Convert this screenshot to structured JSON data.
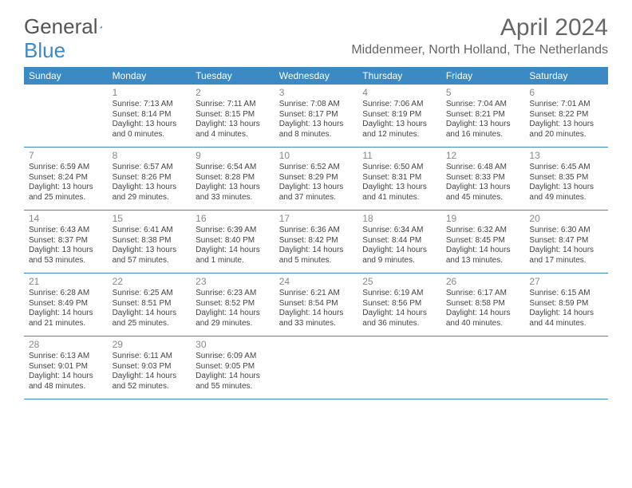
{
  "logo": {
    "word1": "General",
    "word2": "Blue"
  },
  "title": "April 2024",
  "subtitle": "Middenmeer, North Holland, The Netherlands",
  "colors": {
    "header_bg": "#3b8ac4",
    "header_text": "#ffffff",
    "divider": "#3b8ac4",
    "body_text": "#444444",
    "daynum_text": "#888888",
    "title_text": "#666666",
    "background": "#ffffff"
  },
  "typography": {
    "title_fontsize": 30,
    "subtitle_fontsize": 16,
    "day_header_fontsize": 12,
    "daynum_fontsize": 12,
    "body_fontsize": 10
  },
  "day_headers": [
    "Sunday",
    "Monday",
    "Tuesday",
    "Wednesday",
    "Thursday",
    "Friday",
    "Saturday"
  ],
  "weeks": [
    [
      {
        "num": "",
        "sunrise": "",
        "sunset": "",
        "daylight1": "",
        "daylight2": ""
      },
      {
        "num": "1",
        "sunrise": "Sunrise: 7:13 AM",
        "sunset": "Sunset: 8:14 PM",
        "daylight1": "Daylight: 13 hours",
        "daylight2": "and 0 minutes."
      },
      {
        "num": "2",
        "sunrise": "Sunrise: 7:11 AM",
        "sunset": "Sunset: 8:15 PM",
        "daylight1": "Daylight: 13 hours",
        "daylight2": "and 4 minutes."
      },
      {
        "num": "3",
        "sunrise": "Sunrise: 7:08 AM",
        "sunset": "Sunset: 8:17 PM",
        "daylight1": "Daylight: 13 hours",
        "daylight2": "and 8 minutes."
      },
      {
        "num": "4",
        "sunrise": "Sunrise: 7:06 AM",
        "sunset": "Sunset: 8:19 PM",
        "daylight1": "Daylight: 13 hours",
        "daylight2": "and 12 minutes."
      },
      {
        "num": "5",
        "sunrise": "Sunrise: 7:04 AM",
        "sunset": "Sunset: 8:21 PM",
        "daylight1": "Daylight: 13 hours",
        "daylight2": "and 16 minutes."
      },
      {
        "num": "6",
        "sunrise": "Sunrise: 7:01 AM",
        "sunset": "Sunset: 8:22 PM",
        "daylight1": "Daylight: 13 hours",
        "daylight2": "and 20 minutes."
      }
    ],
    [
      {
        "num": "7",
        "sunrise": "Sunrise: 6:59 AM",
        "sunset": "Sunset: 8:24 PM",
        "daylight1": "Daylight: 13 hours",
        "daylight2": "and 25 minutes."
      },
      {
        "num": "8",
        "sunrise": "Sunrise: 6:57 AM",
        "sunset": "Sunset: 8:26 PM",
        "daylight1": "Daylight: 13 hours",
        "daylight2": "and 29 minutes."
      },
      {
        "num": "9",
        "sunrise": "Sunrise: 6:54 AM",
        "sunset": "Sunset: 8:28 PM",
        "daylight1": "Daylight: 13 hours",
        "daylight2": "and 33 minutes."
      },
      {
        "num": "10",
        "sunrise": "Sunrise: 6:52 AM",
        "sunset": "Sunset: 8:29 PM",
        "daylight1": "Daylight: 13 hours",
        "daylight2": "and 37 minutes."
      },
      {
        "num": "11",
        "sunrise": "Sunrise: 6:50 AM",
        "sunset": "Sunset: 8:31 PM",
        "daylight1": "Daylight: 13 hours",
        "daylight2": "and 41 minutes."
      },
      {
        "num": "12",
        "sunrise": "Sunrise: 6:48 AM",
        "sunset": "Sunset: 8:33 PM",
        "daylight1": "Daylight: 13 hours",
        "daylight2": "and 45 minutes."
      },
      {
        "num": "13",
        "sunrise": "Sunrise: 6:45 AM",
        "sunset": "Sunset: 8:35 PM",
        "daylight1": "Daylight: 13 hours",
        "daylight2": "and 49 minutes."
      }
    ],
    [
      {
        "num": "14",
        "sunrise": "Sunrise: 6:43 AM",
        "sunset": "Sunset: 8:37 PM",
        "daylight1": "Daylight: 13 hours",
        "daylight2": "and 53 minutes."
      },
      {
        "num": "15",
        "sunrise": "Sunrise: 6:41 AM",
        "sunset": "Sunset: 8:38 PM",
        "daylight1": "Daylight: 13 hours",
        "daylight2": "and 57 minutes."
      },
      {
        "num": "16",
        "sunrise": "Sunrise: 6:39 AM",
        "sunset": "Sunset: 8:40 PM",
        "daylight1": "Daylight: 14 hours",
        "daylight2": "and 1 minute."
      },
      {
        "num": "17",
        "sunrise": "Sunrise: 6:36 AM",
        "sunset": "Sunset: 8:42 PM",
        "daylight1": "Daylight: 14 hours",
        "daylight2": "and 5 minutes."
      },
      {
        "num": "18",
        "sunrise": "Sunrise: 6:34 AM",
        "sunset": "Sunset: 8:44 PM",
        "daylight1": "Daylight: 14 hours",
        "daylight2": "and 9 minutes."
      },
      {
        "num": "19",
        "sunrise": "Sunrise: 6:32 AM",
        "sunset": "Sunset: 8:45 PM",
        "daylight1": "Daylight: 14 hours",
        "daylight2": "and 13 minutes."
      },
      {
        "num": "20",
        "sunrise": "Sunrise: 6:30 AM",
        "sunset": "Sunset: 8:47 PM",
        "daylight1": "Daylight: 14 hours",
        "daylight2": "and 17 minutes."
      }
    ],
    [
      {
        "num": "21",
        "sunrise": "Sunrise: 6:28 AM",
        "sunset": "Sunset: 8:49 PM",
        "daylight1": "Daylight: 14 hours",
        "daylight2": "and 21 minutes."
      },
      {
        "num": "22",
        "sunrise": "Sunrise: 6:25 AM",
        "sunset": "Sunset: 8:51 PM",
        "daylight1": "Daylight: 14 hours",
        "daylight2": "and 25 minutes."
      },
      {
        "num": "23",
        "sunrise": "Sunrise: 6:23 AM",
        "sunset": "Sunset: 8:52 PM",
        "daylight1": "Daylight: 14 hours",
        "daylight2": "and 29 minutes."
      },
      {
        "num": "24",
        "sunrise": "Sunrise: 6:21 AM",
        "sunset": "Sunset: 8:54 PM",
        "daylight1": "Daylight: 14 hours",
        "daylight2": "and 33 minutes."
      },
      {
        "num": "25",
        "sunrise": "Sunrise: 6:19 AM",
        "sunset": "Sunset: 8:56 PM",
        "daylight1": "Daylight: 14 hours",
        "daylight2": "and 36 minutes."
      },
      {
        "num": "26",
        "sunrise": "Sunrise: 6:17 AM",
        "sunset": "Sunset: 8:58 PM",
        "daylight1": "Daylight: 14 hours",
        "daylight2": "and 40 minutes."
      },
      {
        "num": "27",
        "sunrise": "Sunrise: 6:15 AM",
        "sunset": "Sunset: 8:59 PM",
        "daylight1": "Daylight: 14 hours",
        "daylight2": "and 44 minutes."
      }
    ],
    [
      {
        "num": "28",
        "sunrise": "Sunrise: 6:13 AM",
        "sunset": "Sunset: 9:01 PM",
        "daylight1": "Daylight: 14 hours",
        "daylight2": "and 48 minutes."
      },
      {
        "num": "29",
        "sunrise": "Sunrise: 6:11 AM",
        "sunset": "Sunset: 9:03 PM",
        "daylight1": "Daylight: 14 hours",
        "daylight2": "and 52 minutes."
      },
      {
        "num": "30",
        "sunrise": "Sunrise: 6:09 AM",
        "sunset": "Sunset: 9:05 PM",
        "daylight1": "Daylight: 14 hours",
        "daylight2": "and 55 minutes."
      },
      {
        "num": "",
        "sunrise": "",
        "sunset": "",
        "daylight1": "",
        "daylight2": ""
      },
      {
        "num": "",
        "sunrise": "",
        "sunset": "",
        "daylight1": "",
        "daylight2": ""
      },
      {
        "num": "",
        "sunrise": "",
        "sunset": "",
        "daylight1": "",
        "daylight2": ""
      },
      {
        "num": "",
        "sunrise": "",
        "sunset": "",
        "daylight1": "",
        "daylight2": ""
      }
    ]
  ]
}
